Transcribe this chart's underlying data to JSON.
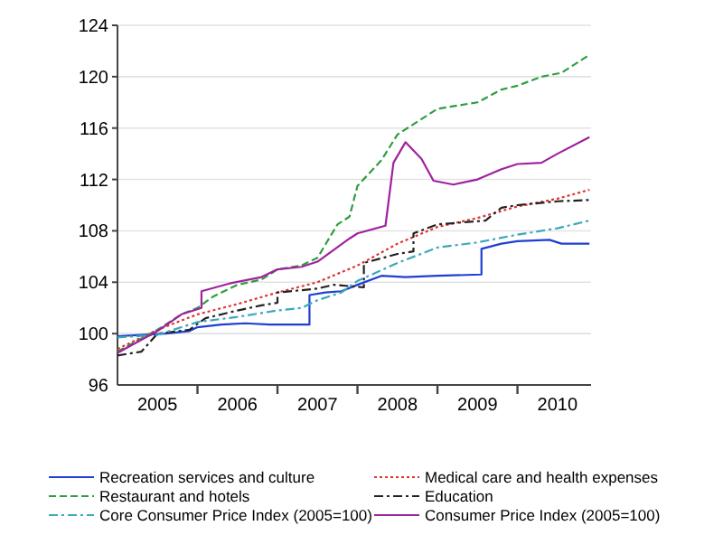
{
  "chart_data": {
    "type": "line",
    "xlim": [
      2005,
      2010.92
    ],
    "xticks": [
      {
        "value": 2005.5,
        "label": "2005"
      },
      {
        "value": 2006,
        "label": null
      },
      {
        "value": 2006.5,
        "label": "2006"
      },
      {
        "value": 2007,
        "label": null
      },
      {
        "value": 2007.5,
        "label": "2007"
      },
      {
        "value": 2008,
        "label": null
      },
      {
        "value": 2008.5,
        "label": "2008"
      },
      {
        "value": 2009,
        "label": null
      },
      {
        "value": 2009.5,
        "label": "2009"
      },
      {
        "value": 2010,
        "label": null
      },
      {
        "value": 2010.5,
        "label": "2010"
      }
    ],
    "ylim": [
      96,
      124
    ],
    "yticks": [
      96,
      100,
      104,
      108,
      112,
      116,
      120,
      124
    ],
    "grid": "y",
    "legend": "bottom",
    "series": [
      {
        "name": "Recreation services and culture",
        "color": "#1f3fd0",
        "line_style": "solid",
        "x": [
          2005,
          2005.3,
          2005.6,
          2005.9,
          2006,
          2006.3,
          2006.6,
          2006.9,
          2007.2,
          2007.4,
          2007.4,
          2007.6,
          2007.8,
          2008,
          2008.3,
          2008.6,
          2009,
          2009.55,
          2009.55,
          2009.8,
          2010,
          2010.4,
          2010.55,
          2010.9
        ],
        "values": [
          99.8,
          99.9,
          100,
          100.2,
          100.5,
          100.7,
          100.8,
          100.7,
          100.7,
          100.7,
          103,
          103.2,
          103.3,
          103.8,
          104.5,
          104.4,
          104.5,
          104.6,
          106.6,
          107,
          107.2,
          107.3,
          107,
          107
        ]
      },
      {
        "name": "Medical care and health expenses",
        "color": "#e03030",
        "line_style": "dotted",
        "x": [
          2005,
          2005.5,
          2006,
          2006.5,
          2007,
          2007.5,
          2008,
          2008.5,
          2009,
          2009.5,
          2010,
          2010.5,
          2010.9
        ],
        "values": [
          98.8,
          100.3,
          101.5,
          102.3,
          103.2,
          104,
          105.3,
          107,
          108.3,
          109,
          109.9,
          110.5,
          111.2
        ]
      },
      {
        "name": "Restaurant and hotels",
        "color": "#2e9e3e",
        "line_style": "dashed",
        "x": [
          2005,
          2005.5,
          2005.8,
          2006,
          2006.2,
          2006.5,
          2006.8,
          2007,
          2007.3,
          2007.5,
          2007.75,
          2007.9,
          2008,
          2008.3,
          2008.5,
          2008.75,
          2009,
          2009.3,
          2009.5,
          2009.8,
          2010,
          2010.3,
          2010.55,
          2010.9
        ],
        "values": [
          98.6,
          100.3,
          101.5,
          102,
          102.9,
          103.8,
          104.2,
          105,
          105.3,
          105.9,
          108.5,
          109.1,
          111.5,
          113.5,
          115.5,
          116.5,
          117.5,
          117.8,
          118,
          119,
          119.3,
          120,
          120.3,
          121.7
        ]
      },
      {
        "name": "Education",
        "color": "#222222",
        "line_style": "dashdot",
        "x": [
          2005,
          2005.3,
          2005.5,
          2005.9,
          2006.1,
          2006.5,
          2006.8,
          2007,
          2007,
          2007.5,
          2007.7,
          2008.08,
          2008.08,
          2008.5,
          2008.7,
          2008.7,
          2009,
          2009.6,
          2009.8,
          2010,
          2010.5,
          2010.9
        ],
        "values": [
          98.3,
          98.6,
          100,
          100.3,
          101.2,
          101.8,
          102.2,
          102.4,
          103.2,
          103.5,
          103.8,
          103.6,
          105.5,
          106.2,
          106.4,
          107.8,
          108.5,
          108.8,
          109.8,
          110,
          110.3,
          110.4
        ]
      },
      {
        "name": "Core Consumer Price Index (2005=100)",
        "color": "#3aa8b8",
        "line_style": "dashdot",
        "x": [
          2005,
          2005.5,
          2006,
          2006.5,
          2007,
          2007.3,
          2007.5,
          2007.8,
          2008,
          2008.5,
          2009,
          2009.5,
          2010,
          2010.5,
          2010.9
        ],
        "values": [
          99.7,
          99.9,
          100.9,
          101.3,
          101.8,
          102,
          102.6,
          103.2,
          104.1,
          105.5,
          106.7,
          107.1,
          107.7,
          108.2,
          108.8
        ]
      },
      {
        "name": "Consumer Price Index (2005=100)",
        "color": "#a020a0",
        "line_style": "solid",
        "x": [
          2005,
          2005.5,
          2005.8,
          2006.05,
          2006.05,
          2006.4,
          2006.8,
          2007,
          2007.3,
          2007.5,
          2007.9,
          2008,
          2008.35,
          2008.45,
          2008.6,
          2008.8,
          2008.95,
          2009.2,
          2009.5,
          2009.8,
          2010,
          2010.3,
          2010.5,
          2010.9
        ],
        "values": [
          98.5,
          100.2,
          101.5,
          102,
          103.3,
          103.9,
          104.4,
          105,
          105.2,
          105.6,
          107.4,
          107.8,
          108.4,
          113.3,
          114.9,
          113.6,
          111.9,
          111.6,
          112,
          112.8,
          113.2,
          113.3,
          114,
          115.3
        ]
      }
    ]
  }
}
